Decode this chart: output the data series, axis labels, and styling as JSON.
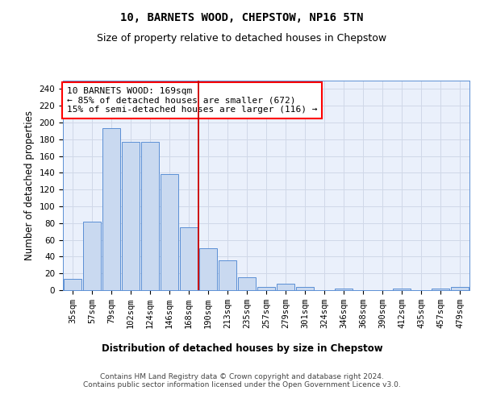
{
  "title": "10, BARNETS WOOD, CHEPSTOW, NP16 5TN",
  "subtitle": "Size of property relative to detached houses in Chepstow",
  "xlabel": "Distribution of detached houses by size in Chepstow",
  "ylabel": "Number of detached properties",
  "categories": [
    "35sqm",
    "57sqm",
    "79sqm",
    "102sqm",
    "124sqm",
    "146sqm",
    "168sqm",
    "190sqm",
    "213sqm",
    "235sqm",
    "257sqm",
    "279sqm",
    "301sqm",
    "324sqm",
    "346sqm",
    "368sqm",
    "390sqm",
    "412sqm",
    "435sqm",
    "457sqm",
    "479sqm"
  ],
  "values": [
    13,
    82,
    193,
    177,
    177,
    138,
    75,
    50,
    36,
    15,
    4,
    8,
    4,
    0,
    2,
    0,
    0,
    2,
    0,
    2,
    4
  ],
  "bar_color": "#c9d9f0",
  "bar_edge_color": "#5b8fd4",
  "grid_color": "#d0d8e8",
  "background_color": "#eaf0fb",
  "annotation_box_text": "10 BARNETS WOOD: 169sqm\n← 85% of detached houses are smaller (672)\n15% of semi-detached houses are larger (116) →",
  "vline_x": 6.5,
  "vline_color": "#cc0000",
  "ylim": [
    0,
    250
  ],
  "yticks": [
    0,
    20,
    40,
    60,
    80,
    100,
    120,
    140,
    160,
    180,
    200,
    220,
    240
  ],
  "footer_text": "Contains HM Land Registry data © Crown copyright and database right 2024.\nContains public sector information licensed under the Open Government Licence v3.0.",
  "title_fontsize": 10,
  "subtitle_fontsize": 9,
  "axis_label_fontsize": 8.5,
  "tick_fontsize": 7.5,
  "annotation_fontsize": 8,
  "footer_fontsize": 6.5
}
